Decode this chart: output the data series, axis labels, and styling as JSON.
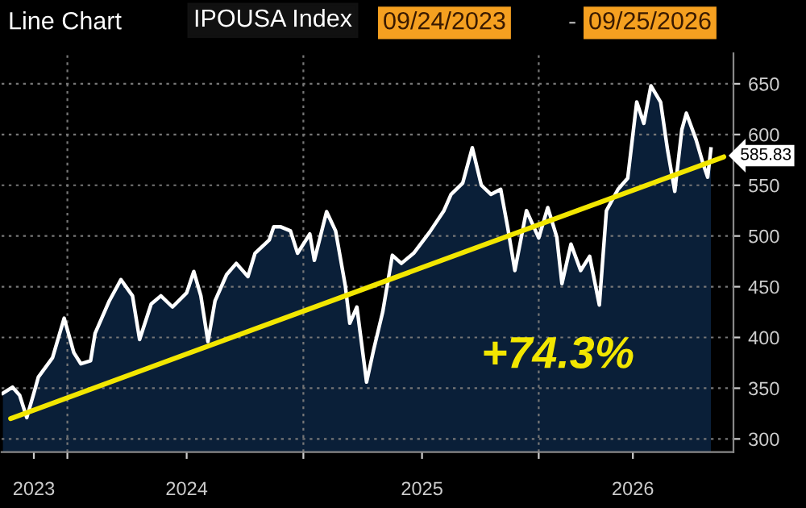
{
  "chart_data": {
    "type": "area",
    "title": "Line Chart",
    "subtitle": "IPOUSA Index",
    "annotations": [
      "09/24/2023",
      "-",
      "09/25/2026",
      "+74.3%"
    ],
    "xlim": [
      "2023-09-21",
      "2026-10-30"
    ],
    "ylim": [
      287,
      680
    ],
    "xticks": [
      {
        "value": "2024-01-01",
        "label": null
      },
      {
        "value": "2025-01-01",
        "label": null
      },
      {
        "value": "2026-01-01",
        "label": null
      },
      {
        "value": "2023-11-10",
        "label": "2023"
      },
      {
        "value": "2024-07-04",
        "label": "2024"
      },
      {
        "value": "2025-07-04",
        "label": "2025"
      },
      {
        "value": "2026-05-27",
        "label": "2026"
      }
    ],
    "yticks": [
      300,
      350,
      400,
      450,
      500,
      550,
      600,
      650
    ],
    "grid": true,
    "series": [
      {
        "color": "#0a1f38",
        "x": [
          "2023-09-23",
          "2023-10-08",
          "2023-10-19",
          "2023-10-30",
          "2023-11-10",
          "2023-11-17",
          "2023-12-09",
          "2023-12-27",
          "2024-01-11",
          "2024-01-22",
          "2024-02-06",
          "2024-02-13",
          "2024-03-06",
          "2024-03-24",
          "2024-04-11",
          "2024-04-22",
          "2024-05-10",
          "2024-05-25",
          "2024-06-12",
          "2024-07-04",
          "2024-07-15",
          "2024-07-26",
          "2024-08-06",
          "2024-08-17",
          "2024-09-04",
          "2024-09-19",
          "2024-10-07",
          "2024-10-18",
          "2024-11-09",
          "2024-11-16",
          "2024-11-27",
          "2024-12-12",
          "2024-12-23",
          "2025-01-11",
          "2025-01-18",
          "2025-02-06",
          "2025-02-20",
          "2025-03-07",
          "2025-03-14",
          "2025-03-25",
          "2025-04-09",
          "2025-04-20",
          "2025-05-04",
          "2025-05-19",
          "2025-06-02",
          "2025-06-21",
          "2025-07-16",
          "2025-08-07",
          "2025-08-18",
          "2025-09-05",
          "2025-09-20",
          "2025-10-04",
          "2025-10-19",
          "2025-11-03",
          "2025-11-14",
          "2025-11-25",
          "2025-12-13",
          "2026-01-01",
          "2026-01-15",
          "2026-01-29",
          "2026-02-06",
          "2026-02-20",
          "2026-03-07",
          "2026-03-21",
          "2026-04-05",
          "2026-04-16",
          "2026-05-04",
          "2026-05-19",
          "2026-06-02",
          "2026-06-13",
          "2026-06-24",
          "2026-07-09",
          "2026-07-20",
          "2026-07-31",
          "2026-08-11",
          "2026-08-18",
          "2026-09-02",
          "2026-09-13",
          "2026-09-20",
          "2026-09-25"
        ],
        "values": [
          345,
          351,
          343,
          321,
          345,
          361,
          380,
          419,
          385,
          374,
          377,
          404,
          436,
          457,
          441,
          398,
          433,
          441,
          430,
          444,
          465,
          441,
          396,
          436,
          462,
          473,
          460,
          483,
          496,
          509,
          509,
          505,
          483,
          502,
          476,
          524,
          505,
          451,
          414,
          430,
          356,
          388,
          425,
          481,
          473,
          483,
          504,
          525,
          541,
          552,
          587,
          550,
          541,
          546,
          508,
          466,
          525,
          498,
          528,
          499,
          453,
          492,
          466,
          480,
          432,
          525,
          546,
          557,
          632,
          611,
          648,
          632,
          584,
          544,
          605,
          621,
          595,
          571,
          558,
          585.83
        ],
        "value_labels": [
          null,
          null,
          null,
          null,
          null,
          null,
          null,
          null,
          null,
          null,
          null,
          null,
          null,
          null,
          null,
          null,
          null,
          null,
          null,
          null,
          null,
          null,
          null,
          null,
          null,
          null,
          null,
          null,
          null,
          null,
          null,
          null,
          null,
          null,
          null,
          null,
          null,
          null,
          null,
          null,
          null,
          null,
          null,
          null,
          null,
          null,
          null,
          null,
          null,
          null,
          null,
          null,
          null,
          null,
          null,
          null,
          null,
          null,
          null,
          null,
          null,
          null,
          null,
          null,
          null,
          null,
          null,
          null,
          null,
          null,
          null,
          null,
          null,
          null,
          null,
          null,
          null,
          null,
          null,
          "585.83"
        ]
      },
      {
        "type": "line",
        "color": "#f2e600",
        "x": [
          "2023-10-05",
          "2026-10-15"
        ],
        "values": [
          320,
          578
        ]
      }
    ]
  }
}
